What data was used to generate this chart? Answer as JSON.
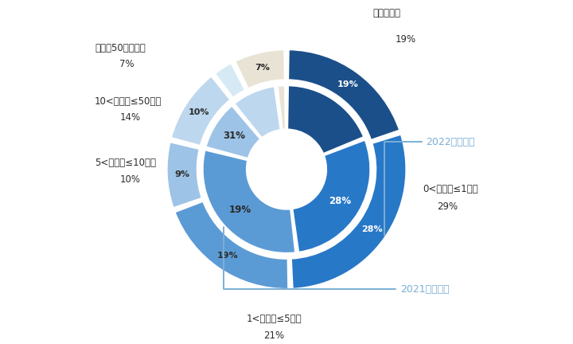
{
  "outer_vals": [
    19,
    28,
    19,
    9,
    10,
    3,
    7
  ],
  "outer_cols": [
    "#1B4F8A",
    "#2878C8",
    "#5B9BD5",
    "#9DC3E6",
    "#BDD7EE",
    "#D6EAF5",
    "#E8E3D5"
  ],
  "inner_vals": [
    19,
    29,
    31,
    10,
    9,
    2
  ],
  "inner_cols": [
    "#1B4F8A",
    "#2878C8",
    "#5B9BD5",
    "#9DC3E6",
    "#BDD7EE",
    "#E8E3D5"
  ],
  "outer_label": "2022年净利润",
  "inner_label": "2021年净利润",
  "cat_neg": "净利润为负",
  "cat_0_1": "0<净利润≤1亿元",
  "cat_1_5": "1<净利润≤5亿元",
  "cat_5_10": "5<净利润≤10亿元",
  "cat_10_50": "10<净利润≤50亿元",
  "cat_50": "净利润50亿元以上",
  "pct_neg": "19%",
  "pct_0_1": "29%",
  "pct_1_5": "21%",
  "pct_5_10": "10%",
  "pct_10_50": "14%",
  "pct_50": "7%",
  "bg_color": "#FFFFFF",
  "text_dark": "#2C2C2C",
  "anno_color": "#7BAFD4"
}
